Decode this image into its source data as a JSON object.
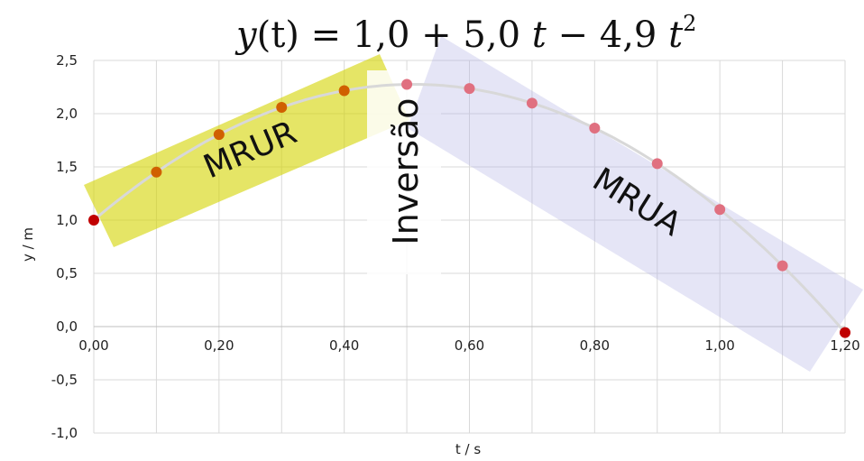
{
  "chart_data": {
    "type": "scatter",
    "title": {
      "prefix": "y",
      "arg": "(t) = 1,0 + 5,0 ",
      "mid": "t",
      "middle": " − 4,9 ",
      "t2": "t",
      "exp": "2"
    },
    "xlabel": "t / s",
    "ylabel": "y / m",
    "xlim": [
      0,
      1.2
    ],
    "ylim": [
      -1.0,
      2.5
    ],
    "x_ticks": [
      "0,00",
      "0,20",
      "0,40",
      "0,60",
      "0,80",
      "1,00",
      "1,20"
    ],
    "y_ticks": [
      "2,5",
      "2,0",
      "1,5",
      "1,0",
      "0,5",
      "0,0",
      "-0,5",
      "-1,0"
    ],
    "x_tick_values": [
      0,
      0.2,
      0.4,
      0.6,
      0.8,
      1.0,
      1.2
    ],
    "y_tick_values": [
      2.5,
      2.0,
      1.5,
      1.0,
      0.5,
      0.0,
      -0.5,
      -1.0
    ],
    "x_minor_grid": [
      0.1,
      0.3,
      0.5,
      0.7,
      0.9,
      1.1
    ],
    "grid": true,
    "curve": {
      "a": 1.0,
      "b": 5.0,
      "c": -4.9
    },
    "series": [
      {
        "x": [
          0.0
        ],
        "y": [
          1.0
        ],
        "color": "#c00000"
      },
      {
        "x": [
          0.1,
          0.2,
          0.3,
          0.4
        ],
        "y": [
          1.451,
          1.804,
          2.059,
          2.216
        ],
        "color": "#d06000"
      },
      {
        "x": [
          0.5,
          0.6,
          0.7,
          0.8,
          0.9,
          1.0,
          1.1
        ],
        "y": [
          2.275,
          2.236,
          2.099,
          1.864,
          1.531,
          1.1,
          0.571
        ],
        "color": "#e07080"
      },
      {
        "x": [
          1.2
        ],
        "y": [
          -0.056
        ],
        "color": "#c00000"
      }
    ],
    "regions": [
      {
        "label": "MRUR",
        "color": "#d4d400"
      },
      {
        "label": "Inversão",
        "color": "#ffffff"
      },
      {
        "label": "MRUA",
        "color": "#b4b4e6"
      }
    ]
  }
}
